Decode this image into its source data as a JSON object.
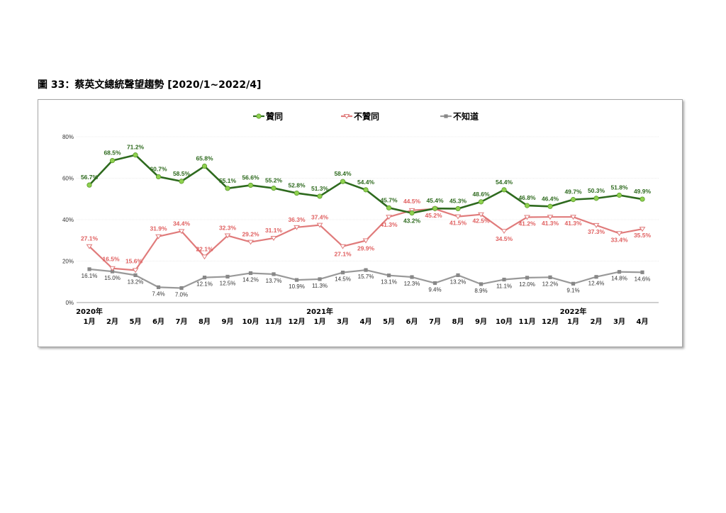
{
  "figure_title": "圖 33：蔡英文總統聲望趨勢  [2020/1~2022/4]",
  "chart_data": {
    "type": "line",
    "categories": [
      [
        "2020年",
        "1月"
      ],
      [
        "",
        "2月"
      ],
      [
        "",
        "5月"
      ],
      [
        "",
        "6月"
      ],
      [
        "",
        "7月"
      ],
      [
        "",
        "8月"
      ],
      [
        "",
        "9月"
      ],
      [
        "",
        "10月"
      ],
      [
        "",
        "11月"
      ],
      [
        "",
        "12月"
      ],
      [
        "2021年",
        "1月"
      ],
      [
        "",
        "3月"
      ],
      [
        "",
        "4月"
      ],
      [
        "",
        "5月"
      ],
      [
        "",
        "6月"
      ],
      [
        "",
        "7月"
      ],
      [
        "",
        "8月"
      ],
      [
        "",
        "9月"
      ],
      [
        "",
        "10月"
      ],
      [
        "",
        "11月"
      ],
      [
        "",
        "12月"
      ],
      [
        "2022年",
        "1月"
      ],
      [
        "",
        "2月"
      ],
      [
        "",
        "3月"
      ],
      [
        "",
        "4月"
      ]
    ],
    "ylim": [
      0,
      80
    ],
    "yticks": [
      "0%",
      "20%",
      "40%",
      "60%",
      "80%"
    ],
    "grid": true,
    "legend_position": "top",
    "series": [
      {
        "name": "贊同",
        "color": "#2e6a1e",
        "marker_color": "#8fd14f",
        "values": [
          56.7,
          68.5,
          71.2,
          60.7,
          58.5,
          65.8,
          55.1,
          56.6,
          55.2,
          52.8,
          51.3,
          58.4,
          54.4,
          45.7,
          43.2,
          45.4,
          45.3,
          48.6,
          54.4,
          46.8,
          46.4,
          49.7,
          50.3,
          51.8,
          49.9
        ],
        "labels": [
          "56.7%",
          "68.5%",
          "71.2%",
          "60.7%",
          "58.5%",
          "65.8%",
          "55.1%",
          "56.6%",
          "55.2%",
          "52.8%",
          "51.3%",
          "58.4%",
          "54.4%",
          "45.7%",
          "43.2%",
          "45.4%",
          "45.3%",
          "48.6%",
          "54.4%",
          "46.8%",
          "46.4%",
          "49.7%",
          "50.3%",
          "51.8%",
          "49.9%"
        ]
      },
      {
        "name": "不贊同",
        "color": "#e07b7b",
        "marker_color": "#ffffff",
        "values": [
          27.1,
          16.5,
          15.6,
          31.9,
          34.4,
          22.1,
          32.3,
          29.2,
          31.1,
          36.3,
          37.4,
          27.1,
          29.9,
          41.3,
          44.5,
          45.2,
          41.5,
          42.5,
          34.5,
          41.2,
          41.3,
          41.3,
          37.3,
          33.4,
          35.5
        ],
        "labels": [
          "27.1%",
          "16.5%",
          "15.6%",
          "31.9%",
          "34.4%",
          "22.1%",
          "32.3%",
          "29.2%",
          "31.1%",
          "36.3%",
          "37.4%",
          "27.1%",
          "29.9%",
          "41.3%",
          "44.5%",
          "45.2%",
          "41.5%",
          "42.5%",
          "34.5%",
          "41.2%",
          "41.3%",
          "41.3%",
          "37.3%",
          "33.4%",
          "35.5%"
        ]
      },
      {
        "name": "不知道",
        "color": "#999999",
        "marker_color": "#888888",
        "values": [
          16.1,
          15.0,
          13.2,
          7.4,
          7.0,
          12.1,
          12.5,
          14.2,
          13.7,
          10.9,
          11.3,
          14.5,
          15.7,
          13.1,
          12.3,
          9.4,
          13.2,
          8.9,
          11.1,
          12.0,
          12.2,
          9.1,
          12.4,
          14.8,
          14.6
        ],
        "labels": [
          "16.1%",
          "15.0%",
          "13.2%",
          "7.4%",
          "7.0%",
          "12.1%",
          "12.5%",
          "14.2%",
          "13.7%",
          "10.9%",
          "11.3%",
          "14.5%",
          "15.7%",
          "13.1%",
          "12.3%",
          "9.4%",
          "13.2%",
          "8.9%",
          "11.1%",
          "12.0%",
          "12.2%",
          "9.1%",
          "12.4%",
          "14.8%",
          "14.6%"
        ]
      }
    ]
  }
}
